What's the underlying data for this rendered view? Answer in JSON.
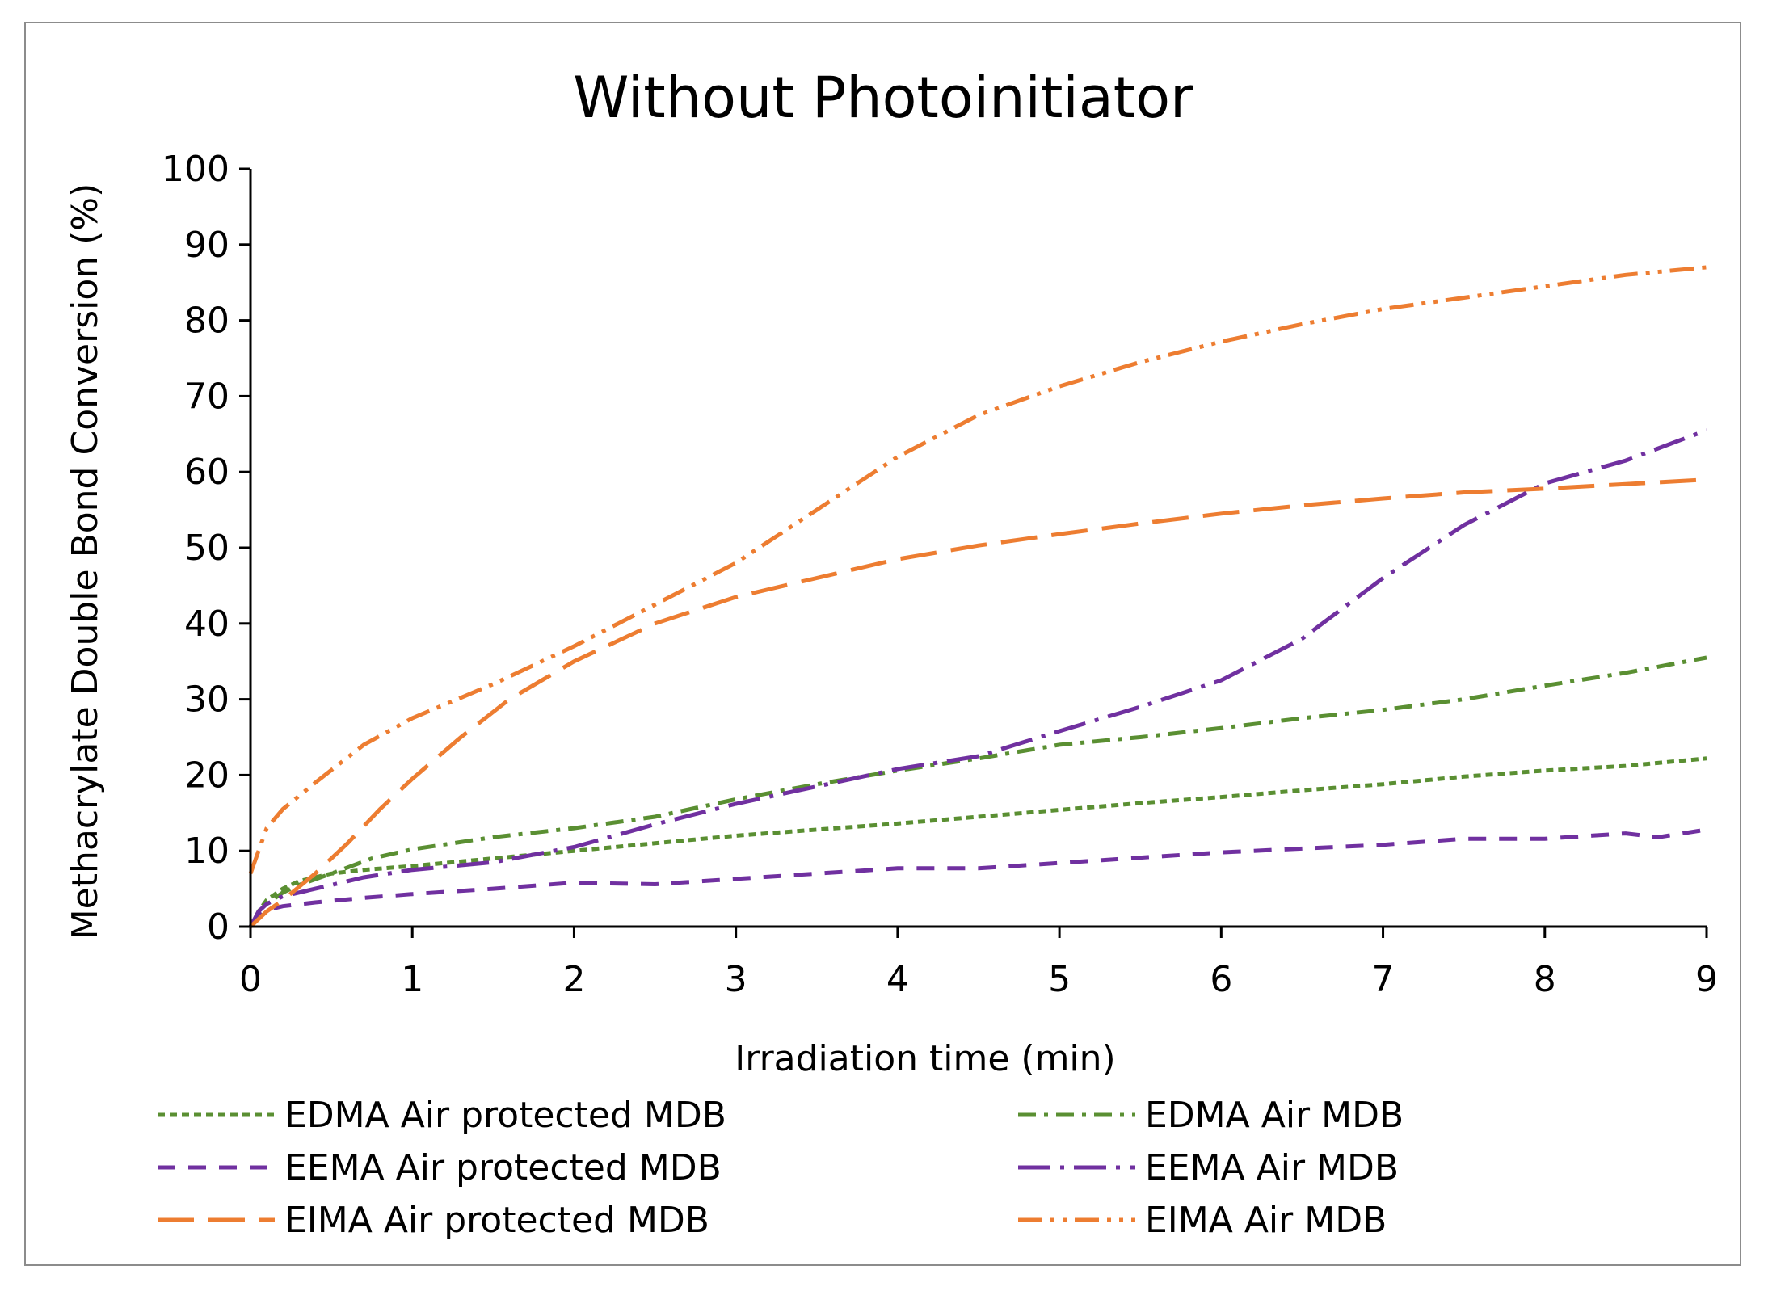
{
  "chart_data": {
    "type": "line",
    "title": "Without Photoinitiator",
    "xlabel": "Irradiation time (min)",
    "ylabel": "Methacrylate Double Bond Conversion (%)",
    "xlim": [
      0,
      9
    ],
    "ylim": [
      0,
      100
    ],
    "x_ticks": [
      0,
      1,
      2,
      3,
      4,
      5,
      6,
      7,
      8,
      9
    ],
    "y_ticks": [
      0,
      10,
      20,
      30,
      40,
      50,
      60,
      70,
      80,
      90,
      100
    ],
    "grid": false,
    "legend_position": "bottom",
    "series": [
      {
        "name": "EDMA Air protected MDB",
        "color": "#5a8f32",
        "dash": "dotted",
        "x": [
          0,
          0.05,
          0.1,
          0.2,
          0.3,
          0.5,
          0.7,
          1,
          1.5,
          2,
          2.5,
          3,
          3.5,
          4,
          4.5,
          5,
          5.5,
          6,
          6.5,
          7,
          7.5,
          8,
          8.5,
          9
        ],
        "y": [
          0,
          2,
          3.5,
          5,
          6,
          7,
          7.5,
          8,
          9,
          10,
          11,
          12,
          12.8,
          13.6,
          14.5,
          15.4,
          16.3,
          17.1,
          18,
          18.8,
          19.8,
          20.6,
          21.2,
          22.2
        ]
      },
      {
        "name": "EDMA Air MDB",
        "color": "#5a8f32",
        "dash": "dashdot",
        "x": [
          0,
          0.05,
          0.1,
          0.2,
          0.3,
          0.5,
          0.75,
          1,
          1.5,
          2,
          2.5,
          3,
          3.5,
          4,
          4.5,
          5,
          5.5,
          6,
          6.5,
          7,
          7.5,
          8,
          8.5,
          9
        ],
        "y": [
          0,
          1.5,
          3,
          4.5,
          5.5,
          7,
          9,
          10.2,
          11.8,
          13,
          14.5,
          16.8,
          18.8,
          20.6,
          22.2,
          24,
          25,
          26.2,
          27.5,
          28.6,
          30,
          31.8,
          33.5,
          35.5
        ]
      },
      {
        "name": "EEMA  Air protected MDB",
        "color": "#7030a0",
        "dash": "dashed",
        "x": [
          0,
          0.05,
          0.1,
          0.2,
          0.4,
          0.7,
          1,
          1.5,
          2,
          2.5,
          3,
          3.5,
          4,
          4.5,
          5,
          5.5,
          6,
          6.5,
          7,
          7.5,
          8,
          8.5,
          8.7,
          9
        ],
        "y": [
          0,
          1.5,
          2.2,
          2.7,
          3.2,
          3.8,
          4.3,
          5,
          5.8,
          5.6,
          6.3,
          7,
          7.7,
          7.7,
          8.4,
          9.1,
          9.8,
          10.3,
          10.8,
          11.6,
          11.6,
          12.3,
          11.8,
          12.8
        ]
      },
      {
        "name": "EEMA Air MDB",
        "color": "#7030a0",
        "dash": "longdashdot",
        "x": [
          0,
          0.05,
          0.1,
          0.2,
          0.4,
          0.7,
          1,
          1.5,
          2,
          2.5,
          3,
          3.5,
          4,
          4.5,
          5,
          5.5,
          6,
          6.5,
          7,
          7.5,
          8,
          8.5,
          9
        ],
        "y": [
          0,
          2,
          3,
          4,
          5,
          6.5,
          7.5,
          8.5,
          10.5,
          13.5,
          16.2,
          18.5,
          20.8,
          22.5,
          25.8,
          29,
          32.5,
          38,
          46,
          53,
          58.5,
          61.5,
          65.5
        ]
      },
      {
        "name": "EIMA  Air protected MDB",
        "color": "#ed7d31",
        "dash": "longdash",
        "x": [
          0,
          0.05,
          0.1,
          0.2,
          0.4,
          0.6,
          0.8,
          1,
          1.3,
          1.6,
          2,
          2.5,
          3,
          3.5,
          4,
          4.5,
          5,
          5.5,
          6,
          6.5,
          7,
          7.5,
          8,
          8.5,
          9
        ],
        "y": [
          0,
          1,
          2,
          3.5,
          7,
          11,
          15.5,
          19.5,
          25,
          30,
          35,
          40,
          43.5,
          46,
          48.5,
          50.3,
          51.8,
          53.2,
          54.5,
          55.6,
          56.5,
          57.3,
          57.8,
          58.4,
          59
        ]
      },
      {
        "name": "EIMA Air MDB",
        "color": "#ed7d31",
        "dash": "dashdotdot",
        "x": [
          0,
          0.05,
          0.1,
          0.2,
          0.4,
          0.7,
          1,
          1.5,
          2,
          2.5,
          3,
          3.5,
          4,
          4.5,
          5,
          5.5,
          6,
          6.5,
          7,
          7.5,
          8,
          8.5,
          9
        ],
        "y": [
          7,
          10,
          13,
          15.5,
          19,
          24,
          27.5,
          32,
          37,
          42.5,
          48,
          55,
          62,
          67.5,
          71.3,
          74.5,
          77.2,
          79.5,
          81.5,
          83,
          84.5,
          86,
          87
        ]
      }
    ]
  }
}
